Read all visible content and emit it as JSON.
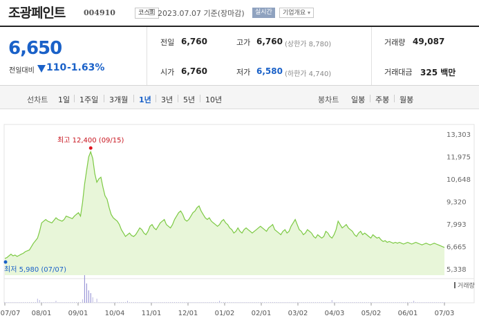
{
  "header": {
    "company_name": "조광페인트",
    "code": "004910",
    "market": "코스피",
    "date_text": "2023.07.07  기준(장마감)",
    "realtime_label": "실시간",
    "company_info_label": "기업개요",
    "dropdown_icon": "chevron-down-icon"
  },
  "price": {
    "current": "6,650",
    "change_label": "전일대비",
    "change_direction": "down",
    "change": "110",
    "change_pct": "-1.63%",
    "down_color": "#1a61c8"
  },
  "stats": {
    "prev_close_label": "전일",
    "prev_close": "6,760",
    "high_label": "고가",
    "high": "6,760",
    "upper_limit": "(상한가 8,780)",
    "volume_label": "거래량",
    "volume": "49,087",
    "open_label": "시가",
    "open": "6,760",
    "low_label": "저가",
    "low": "6,580",
    "lower_limit": "(하한가 4,740)",
    "trade_value_label": "거래대금",
    "trade_value": "325 백만"
  },
  "periods": {
    "line_chart_label": "선차트",
    "line_options": [
      "1일",
      "1주일",
      "3개월",
      "1년",
      "3년",
      "5년",
      "10년"
    ],
    "selected": "1년",
    "candle_chart_label": "봉차트",
    "candle_options": [
      "일봉",
      "주봉",
      "월봉"
    ]
  },
  "chart_data": {
    "type": "area",
    "line_color": "#7cc943",
    "fill_color": "#e8f6d9",
    "yticks": [
      "13,303",
      "11,975",
      "10,648",
      "9,320",
      "7,993",
      "6,665",
      "5,338"
    ],
    "ytick_values": [
      13303,
      11975,
      10648,
      9320,
      7993,
      6665,
      5338
    ],
    "ylim": [
      5338,
      13303
    ],
    "xticks": [
      "07/07",
      "08/01",
      "09/01",
      "10/04",
      "11/01",
      "12/01",
      "01/02",
      "02/01",
      "03/02",
      "04/03",
      "05/02",
      "06/01",
      "07/03"
    ],
    "high_annotation": "최고 12,400 (09/15)",
    "low_annotation": "최저 5,980 (07/07)",
    "high": 12400,
    "low": 5980,
    "volume_label": "거래량",
    "series": [
      {
        "values": [
          6000,
          6050,
          6150,
          6250,
          6150,
          6200,
          6120,
          6180,
          6250,
          6300,
          6400,
          6450,
          6500,
          6700,
          6900,
          7050,
          7200,
          7600,
          8100,
          8200,
          8300,
          8200,
          8150,
          8100,
          8250,
          8400,
          8300,
          8250,
          8200,
          8300,
          8500,
          8450,
          8400,
          8350,
          8500,
          8600,
          8700,
          8500,
          9300,
          10400,
          11200,
          12000,
          12300,
          11900,
          11000,
          10500,
          10700,
          10800,
          10200,
          9700,
          9500,
          9000,
          8600,
          8400,
          8300,
          8200,
          8000,
          7700,
          7500,
          7300,
          7400,
          7500,
          7350,
          7300,
          7400,
          7600,
          7800,
          7700,
          7500,
          7400,
          7600,
          7900,
          8000,
          7800,
          7700,
          7900,
          8100,
          8200,
          8300,
          8000,
          7900,
          7800,
          8000,
          8300,
          8500,
          8700,
          8800,
          8600,
          8300,
          8200,
          8300,
          8500,
          8700,
          8800,
          9000,
          9100,
          8800,
          8600,
          8400,
          8300,
          8400,
          8200,
          8100,
          8000,
          7900,
          8000,
          8200,
          8300,
          8100,
          8000,
          7800,
          7700,
          7500,
          7600,
          7800,
          7600,
          7500,
          7700,
          7800,
          7700,
          7600,
          7500,
          7600,
          7700,
          7800,
          7900,
          7800,
          7700,
          7600,
          7800,
          7900,
          8000,
          7700,
          7600,
          7500,
          7400,
          7600,
          7700,
          7500,
          7600,
          7900,
          8100,
          8300,
          8000,
          7700,
          7600,
          7400,
          7500,
          7700,
          7600,
          7500,
          7300,
          7200,
          7400,
          7300,
          7200,
          7300,
          7600,
          7500,
          7300,
          7200,
          7400,
          7700,
          8200,
          8000,
          7800,
          7900,
          8000,
          7800,
          7700,
          7600,
          7400,
          7300,
          7500,
          7600,
          7400,
          7500,
          7400,
          7300,
          7200,
          7400,
          7300,
          7200,
          7250,
          7100,
          7000,
          7050,
          6950,
          7000,
          6950,
          6900,
          6950,
          6900,
          6950,
          6900,
          6850,
          6900,
          6950,
          6900,
          6850,
          6900,
          6950,
          6900,
          6850,
          6800,
          6850,
          6900,
          6850,
          6800,
          6850,
          6900,
          6850,
          6800,
          6750,
          6700,
          6650
        ]
      }
    ]
  }
}
